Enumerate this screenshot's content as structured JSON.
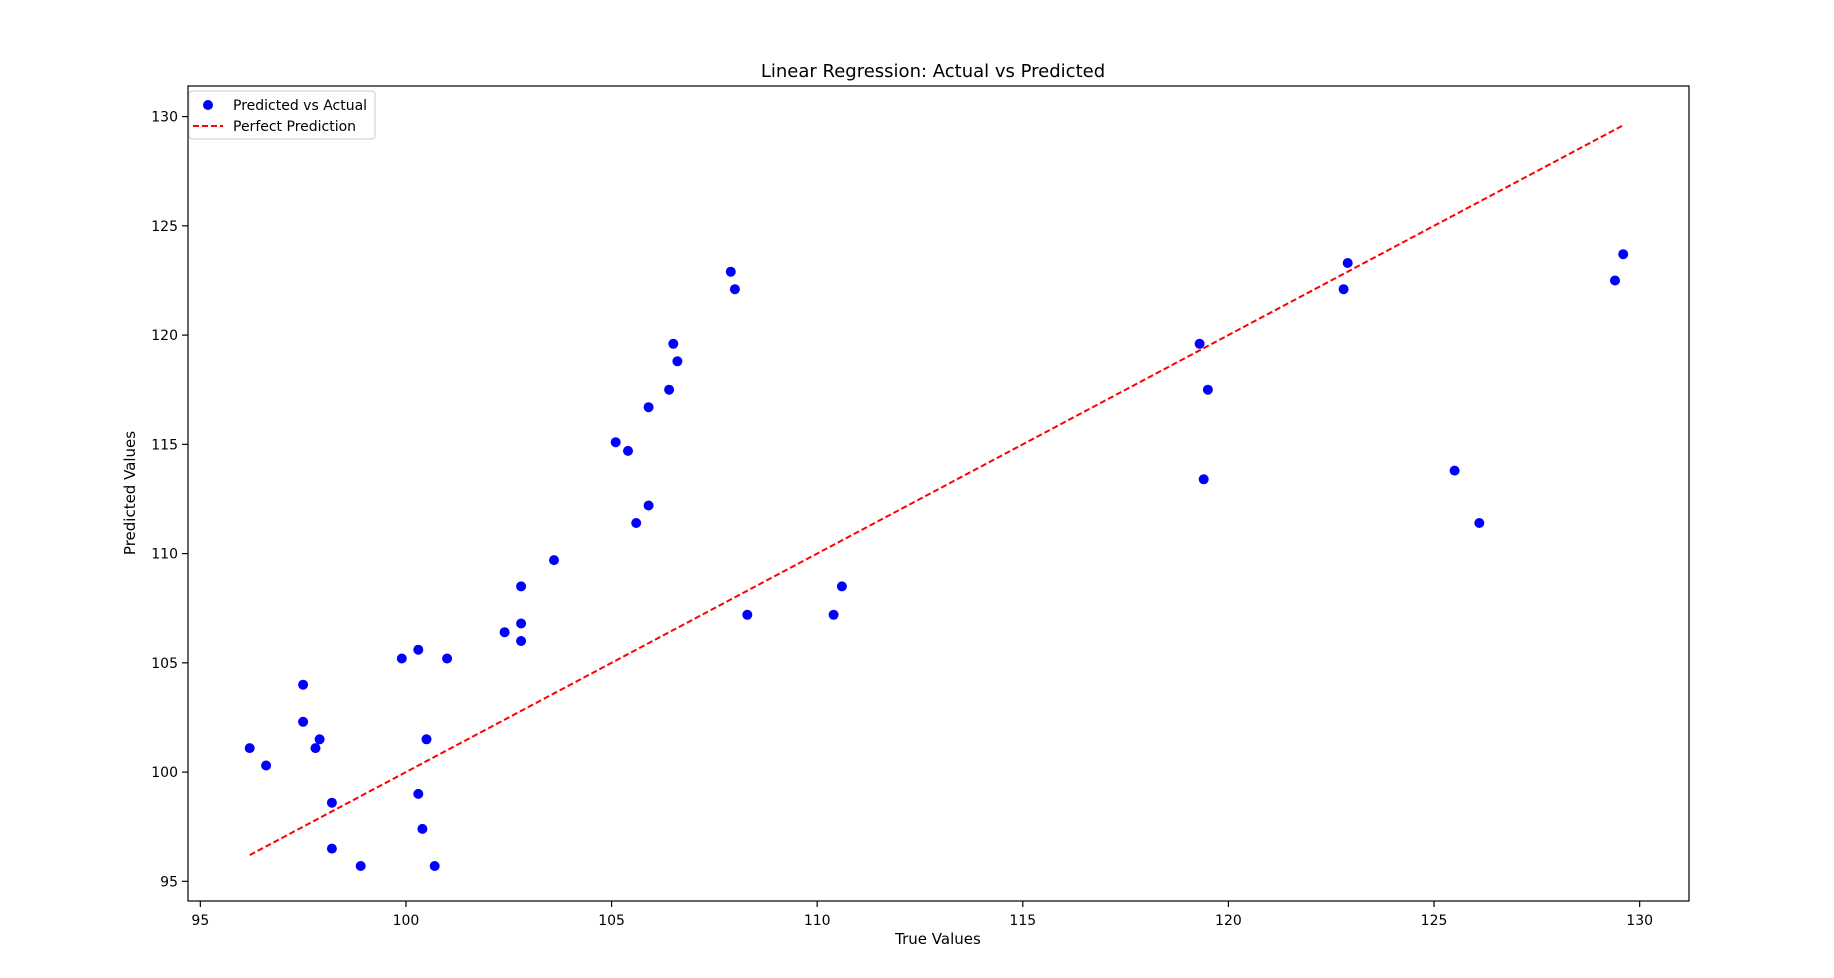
{
  "chart_data": {
    "type": "scatter",
    "title": "Linear Regression: Actual vs Predicted",
    "xlabel": "True Values",
    "ylabel": "Predicted Values",
    "xlim": [
      94.7,
      131.2
    ],
    "ylim": [
      94.1,
      131.4
    ],
    "xticks": [
      95,
      100,
      105,
      110,
      115,
      120,
      125,
      130
    ],
    "yticks": [
      95,
      100,
      105,
      110,
      115,
      120,
      125,
      130
    ],
    "grid": false,
    "legend_position": "upper-left",
    "series": [
      {
        "name": "Predicted vs Actual",
        "kind": "scatter",
        "color": "#0000ff",
        "points": [
          [
            96.2,
            101.1
          ],
          [
            96.6,
            100.3
          ],
          [
            97.5,
            104.0
          ],
          [
            97.5,
            102.3
          ],
          [
            97.8,
            101.1
          ],
          [
            97.9,
            101.5
          ],
          [
            98.2,
            98.6
          ],
          [
            98.2,
            96.5
          ],
          [
            98.9,
            95.7
          ],
          [
            99.9,
            105.2
          ],
          [
            100.3,
            105.6
          ],
          [
            100.3,
            99.0
          ],
          [
            100.4,
            97.4
          ],
          [
            100.5,
            101.5
          ],
          [
            100.7,
            95.7
          ],
          [
            101.0,
            105.2
          ],
          [
            102.4,
            106.4
          ],
          [
            102.8,
            106.8
          ],
          [
            102.8,
            106.0
          ],
          [
            102.8,
            108.5
          ],
          [
            103.6,
            109.7
          ],
          [
            105.1,
            115.1
          ],
          [
            105.4,
            114.7
          ],
          [
            105.6,
            111.4
          ],
          [
            105.9,
            112.2
          ],
          [
            105.9,
            116.7
          ],
          [
            106.4,
            117.5
          ],
          [
            106.5,
            119.6
          ],
          [
            106.6,
            118.8
          ],
          [
            107.9,
            122.9
          ],
          [
            108.0,
            122.1
          ],
          [
            108.3,
            107.2
          ],
          [
            110.4,
            107.2
          ],
          [
            110.6,
            108.5
          ],
          [
            119.3,
            119.6
          ],
          [
            119.4,
            113.4
          ],
          [
            119.5,
            117.5
          ],
          [
            122.8,
            122.1
          ],
          [
            122.9,
            123.3
          ],
          [
            125.5,
            113.8
          ],
          [
            126.1,
            111.4
          ],
          [
            129.4,
            122.5
          ],
          [
            129.6,
            123.7
          ]
        ]
      },
      {
        "name": "Perfect Prediction",
        "kind": "line",
        "style": "dashed",
        "color": "#ff0000",
        "points": [
          [
            96.2,
            96.2
          ],
          [
            129.6,
            129.6
          ]
        ]
      }
    ]
  }
}
